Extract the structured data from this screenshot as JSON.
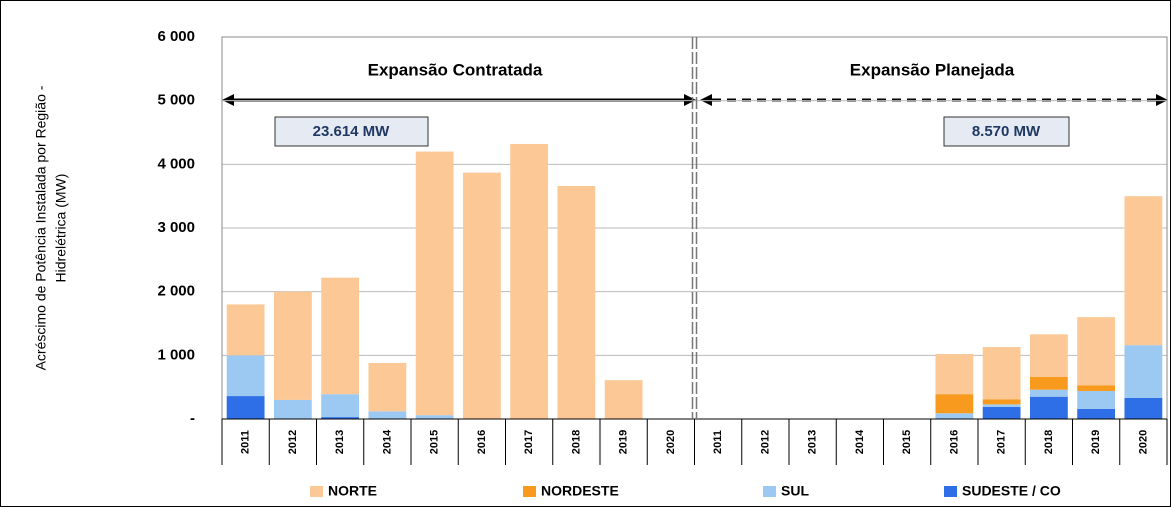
{
  "chart_data": {
    "type": "stacked_bar",
    "y_label": [
      "Acréscimo de Potência Instalada por Região -",
      "Hidrelétrica (MW)"
    ],
    "annotations": [
      "Expansão Contratada",
      "Expansão Planejada",
      "23.614 MW",
      "8.570 MW"
    ],
    "categories": [
      "2011",
      "2012",
      "2013",
      "2014",
      "2015",
      "2016",
      "2017",
      "2018",
      "2019",
      "2020",
      "2011",
      "2012",
      "2013",
      "2014",
      "2015",
      "2016",
      "2017",
      "2018",
      "2019",
      "2020"
    ],
    "series": [
      {
        "name": "NORTE",
        "color": "#fbc896",
        "values": [
          800,
          1700,
          1830,
          760,
          4140,
          3870,
          4320,
          3660,
          610,
          0,
          0,
          0,
          0,
          0,
          0,
          630,
          820,
          670,
          1070,
          2340
        ]
      },
      {
        "name": "NORDESTE",
        "color": "#f79a1d",
        "values": [
          0,
          0,
          0,
          0,
          0,
          0,
          0,
          0,
          0,
          0,
          0,
          0,
          0,
          0,
          0,
          300,
          80,
          200,
          90,
          0
        ]
      },
      {
        "name": "SUL",
        "color": "#9cc9f2",
        "values": [
          640,
          300,
          360,
          120,
          60,
          0,
          0,
          0,
          0,
          0,
          0,
          0,
          0,
          0,
          0,
          90,
          40,
          110,
          280,
          830
        ]
      },
      {
        "name": "SUDESTE / CO",
        "color": "#2e6ee6",
        "values": [
          360,
          0,
          30,
          0,
          0,
          0,
          0,
          0,
          0,
          0,
          0,
          0,
          0,
          0,
          0,
          0,
          190,
          350,
          160,
          330
        ]
      }
    ],
    "ylim": [
      0,
      6000
    ],
    "yticks": [
      {
        "value": 0,
        "label": "-"
      },
      {
        "value": 1000,
        "label": "1 000"
      },
      {
        "value": 2000,
        "label": "2 000"
      },
      {
        "value": 3000,
        "label": "3 000"
      },
      {
        "value": 4000,
        "label": "4 000"
      },
      {
        "value": 5000,
        "label": "5 000"
      },
      {
        "value": 6000,
        "label": "6 000"
      }
    ],
    "grid": true
  }
}
